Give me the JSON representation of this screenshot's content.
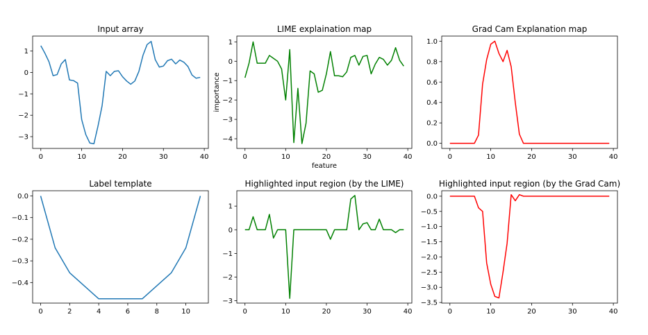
{
  "chart_data": [
    {
      "type": "line",
      "title": "Input array",
      "xlabel": "",
      "ylabel": "",
      "xlim": [
        -2,
        41
      ],
      "ylim": [
        -3.55,
        1.7
      ],
      "xticks": [
        0,
        10,
        20,
        30,
        40
      ],
      "yticks": [
        1,
        0,
        -1,
        -2,
        -3
      ],
      "color": "#1f77b4",
      "x": [
        0,
        1,
        2,
        3,
        4,
        5,
        6,
        7,
        8,
        9,
        10,
        11,
        12,
        13,
        14,
        15,
        16,
        17,
        18,
        19,
        20,
        21,
        22,
        23,
        24,
        25,
        26,
        27,
        28,
        29,
        30,
        31,
        32,
        33,
        34,
        35,
        36,
        37,
        38,
        39
      ],
      "values": [
        1.25,
        0.9,
        0.5,
        -0.15,
        -0.1,
        0.4,
        0.6,
        -0.35,
        -0.38,
        -0.5,
        -2.2,
        -2.9,
        -3.3,
        -3.33,
        -2.5,
        -1.55,
        0.05,
        -0.15,
        0.05,
        0.08,
        -0.2,
        -0.4,
        -0.55,
        -0.4,
        0.05,
        0.8,
        1.3,
        1.45,
        0.6,
        0.25,
        0.3,
        0.55,
        0.62,
        0.4,
        0.58,
        0.48,
        0.28,
        -0.12,
        -0.27,
        -0.23
      ]
    },
    {
      "type": "line",
      "title": "LIME explaination map",
      "xlabel": "feature",
      "ylabel": "importance",
      "xlim": [
        -2,
        41
      ],
      "ylim": [
        -4.5,
        1.3
      ],
      "xticks": [
        0,
        10,
        20,
        30,
        40
      ],
      "yticks": [
        1,
        0,
        -1,
        -2,
        -3,
        -4
      ],
      "color": "#008000",
      "x": [
        0,
        1,
        2,
        3,
        4,
        5,
        6,
        7,
        8,
        9,
        10,
        11,
        12,
        13,
        14,
        15,
        16,
        17,
        18,
        19,
        20,
        21,
        22,
        23,
        24,
        25,
        26,
        27,
        28,
        29,
        30,
        31,
        32,
        33,
        34,
        35,
        36,
        37,
        38,
        39
      ],
      "values": [
        -0.85,
        -0.1,
        1.0,
        -0.1,
        -0.1,
        -0.1,
        0.3,
        0.15,
        0.0,
        -0.4,
        -2.0,
        0.6,
        -4.2,
        -1.4,
        -4.25,
        -3.2,
        -0.5,
        -0.65,
        -1.6,
        -1.5,
        -0.65,
        0.5,
        -0.75,
        -0.75,
        -0.8,
        -0.55,
        0.2,
        0.3,
        -0.2,
        0.25,
        0.3,
        -0.65,
        -0.15,
        0.2,
        0.1,
        -0.2,
        0.05,
        0.7,
        0.05,
        -0.25
      ]
    },
    {
      "type": "line",
      "title": "Grad Cam Explanation map",
      "xlabel": "",
      "ylabel": "",
      "xlim": [
        -2,
        41
      ],
      "ylim": [
        -0.05,
        1.05
      ],
      "xticks": [
        0,
        10,
        20,
        30,
        40
      ],
      "yticks": [
        1.0,
        0.8,
        0.6,
        0.4,
        0.2,
        0.0
      ],
      "color": "#ff0000",
      "x": [
        0,
        1,
        2,
        3,
        4,
        5,
        6,
        7,
        8,
        9,
        10,
        11,
        12,
        13,
        14,
        15,
        16,
        17,
        18,
        19,
        20,
        21,
        22,
        23,
        24,
        25,
        26,
        27,
        28,
        29,
        30,
        31,
        32,
        33,
        34,
        35,
        36,
        37,
        38,
        39
      ],
      "values": [
        0,
        0,
        0,
        0,
        0,
        0,
        0,
        0.08,
        0.58,
        0.82,
        0.97,
        1.0,
        0.88,
        0.8,
        0.91,
        0.75,
        0.4,
        0.09,
        0,
        0,
        0,
        0,
        0,
        0,
        0,
        0,
        0,
        0,
        0,
        0,
        0,
        0,
        0,
        0,
        0,
        0,
        0,
        0,
        0,
        0
      ]
    },
    {
      "type": "line",
      "title": "Label template",
      "xlabel": "",
      "ylabel": "",
      "xlim": [
        -0.55,
        11.55
      ],
      "ylim": [
        -0.495,
        0.024
      ],
      "xticks": [
        0,
        2,
        4,
        6,
        8,
        10
      ],
      "yticks": [
        0.0,
        -0.1,
        -0.2,
        -0.3,
        -0.4
      ],
      "color": "#1f77b4",
      "x": [
        0,
        1,
        2,
        3,
        4,
        5,
        6,
        7,
        8,
        9,
        10,
        11
      ],
      "values": [
        0.0,
        -0.24,
        -0.355,
        -0.415,
        -0.475,
        -0.475,
        -0.475,
        -0.475,
        -0.415,
        -0.355,
        -0.24,
        0.0
      ]
    },
    {
      "type": "line",
      "title": "Highlighted input region (by the LIME)",
      "xlabel": "",
      "ylabel": "",
      "xlim": [
        -2,
        41
      ],
      "ylim": [
        -3.1,
        1.65
      ],
      "xticks": [
        0,
        10,
        20,
        30,
        40
      ],
      "yticks": [
        1,
        0,
        -1,
        -2,
        -3
      ],
      "color": "#008000",
      "x": [
        0,
        1,
        2,
        3,
        4,
        5,
        6,
        7,
        8,
        9,
        10,
        11,
        12,
        13,
        14,
        15,
        16,
        17,
        18,
        19,
        20,
        21,
        22,
        23,
        24,
        25,
        26,
        27,
        28,
        29,
        30,
        31,
        32,
        33,
        34,
        35,
        36,
        37,
        38,
        39
      ],
      "values": [
        0,
        0,
        0.55,
        0,
        0,
        0,
        0.65,
        -0.35,
        0,
        0,
        0,
        -2.9,
        0,
        0,
        0,
        0,
        0,
        0,
        0,
        0,
        0,
        -0.4,
        0,
        0,
        0,
        0,
        1.3,
        1.45,
        0,
        0.25,
        0.3,
        0,
        0,
        0.45,
        0,
        0,
        0,
        -0.12,
        0,
        0
      ]
    },
    {
      "type": "line",
      "title": "Highlighted input region (by the Grad Cam)",
      "xlabel": "",
      "ylabel": "",
      "xlim": [
        -2,
        41
      ],
      "ylim": [
        -3.52,
        0.18
      ],
      "xticks": [
        0,
        10,
        20,
        30,
        40
      ],
      "yticks": [
        0.0,
        -0.5,
        -1.0,
        -1.5,
        -2.0,
        -2.5,
        -3.0,
        -3.5
      ],
      "color": "#ff0000",
      "x": [
        0,
        1,
        2,
        3,
        4,
        5,
        6,
        7,
        8,
        9,
        10,
        11,
        12,
        13,
        14,
        15,
        16,
        17,
        18,
        19,
        20,
        21,
        22,
        23,
        24,
        25,
        26,
        27,
        28,
        29,
        30,
        31,
        32,
        33,
        34,
        35,
        36,
        37,
        38,
        39
      ],
      "values": [
        0,
        0,
        0,
        0,
        0,
        0,
        0,
        -0.38,
        -0.5,
        -2.2,
        -2.9,
        -3.3,
        -3.35,
        -2.5,
        -1.55,
        0.05,
        -0.15,
        0.05,
        0,
        0,
        0,
        0,
        0,
        0,
        0,
        0,
        0,
        0,
        0,
        0,
        0,
        0,
        0,
        0,
        0,
        0,
        0,
        0,
        0,
        0
      ]
    }
  ]
}
